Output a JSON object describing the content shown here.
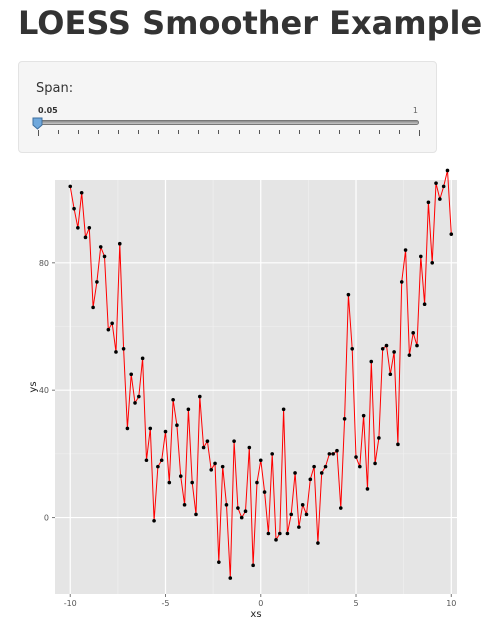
{
  "title": "LOESS Smoother Example",
  "slider": {
    "label": "Span:",
    "min_label": "0.05",
    "max_label": "1",
    "value": 0.05,
    "min": 0.05,
    "max": 1,
    "handle_color": "#6fa8dc"
  },
  "chart_data": {
    "type": "scatter",
    "xlabel": "xs",
    "ylabel": "ys",
    "xlim": [
      -10.8,
      10.3
    ],
    "ylim": [
      -24,
      106
    ],
    "x_ticks": [
      -10,
      -5,
      0,
      5,
      10
    ],
    "y_ticks": [
      0,
      40,
      80
    ],
    "grid": true,
    "panel_background": "#e5e5e5",
    "smoother_color": "#ff0000",
    "point_color": "#000000",
    "x": [
      -10,
      -9.8,
      -9.6,
      -9.4,
      -9.2,
      -9.0,
      -8.8,
      -8.6,
      -8.4,
      -8.2,
      -8.0,
      -7.8,
      -7.6,
      -7.4,
      -7.2,
      -7.0,
      -6.8,
      -6.6,
      -6.4,
      -6.2,
      -6.0,
      -5.8,
      -5.6,
      -5.4,
      -5.2,
      -5.0,
      -4.8,
      -4.6,
      -4.4,
      -4.2,
      -4.0,
      -3.8,
      -3.6,
      -3.4,
      -3.2,
      -3.0,
      -2.8,
      -2.6,
      -2.4,
      -2.2,
      -2.0,
      -1.8,
      -1.6,
      -1.4,
      -1.2,
      -1.0,
      -0.8,
      -0.6,
      -0.4,
      -0.2,
      0.0,
      0.2,
      0.4,
      0.6,
      0.8,
      1.0,
      1.2,
      1.4,
      1.6,
      1.8,
      2.0,
      2.2,
      2.4,
      2.6,
      2.8,
      3.0,
      3.2,
      3.4,
      3.6,
      3.8,
      4.0,
      4.2,
      4.4,
      4.6,
      4.8,
      5.0,
      5.2,
      5.4,
      5.6,
      5.8,
      6.0,
      6.2,
      6.4,
      6.6,
      6.8,
      7.0,
      7.2,
      7.4,
      7.6,
      7.8,
      8.0,
      8.2,
      8.4,
      8.6,
      8.8,
      9.0,
      9.2,
      9.4,
      9.6,
      9.8,
      10.0
    ],
    "y": [
      104,
      97,
      91,
      102,
      88,
      91,
      66,
      74,
      85,
      82,
      59,
      61,
      52,
      86,
      53,
      28,
      45,
      36,
      38,
      50,
      18,
      28,
      -1,
      16,
      18,
      27,
      11,
      37,
      29,
      13,
      4,
      34,
      11,
      1,
      38,
      22,
      24,
      15,
      17,
      -14,
      16,
      4,
      -19,
      24,
      3,
      0,
      2,
      22,
      -15,
      11,
      18,
      8,
      -5,
      20,
      -7,
      -5,
      34,
      -5,
      1,
      14,
      -3,
      4,
      1,
      12,
      16,
      -8,
      14,
      16,
      20,
      20,
      21,
      3,
      31,
      70,
      53,
      19,
      16,
      32,
      9,
      49,
      17,
      25,
      53,
      54,
      45,
      52,
      23,
      74,
      84,
      51,
      58,
      54,
      82,
      67,
      99,
      80,
      105,
      100,
      104,
      109,
      89
    ]
  }
}
